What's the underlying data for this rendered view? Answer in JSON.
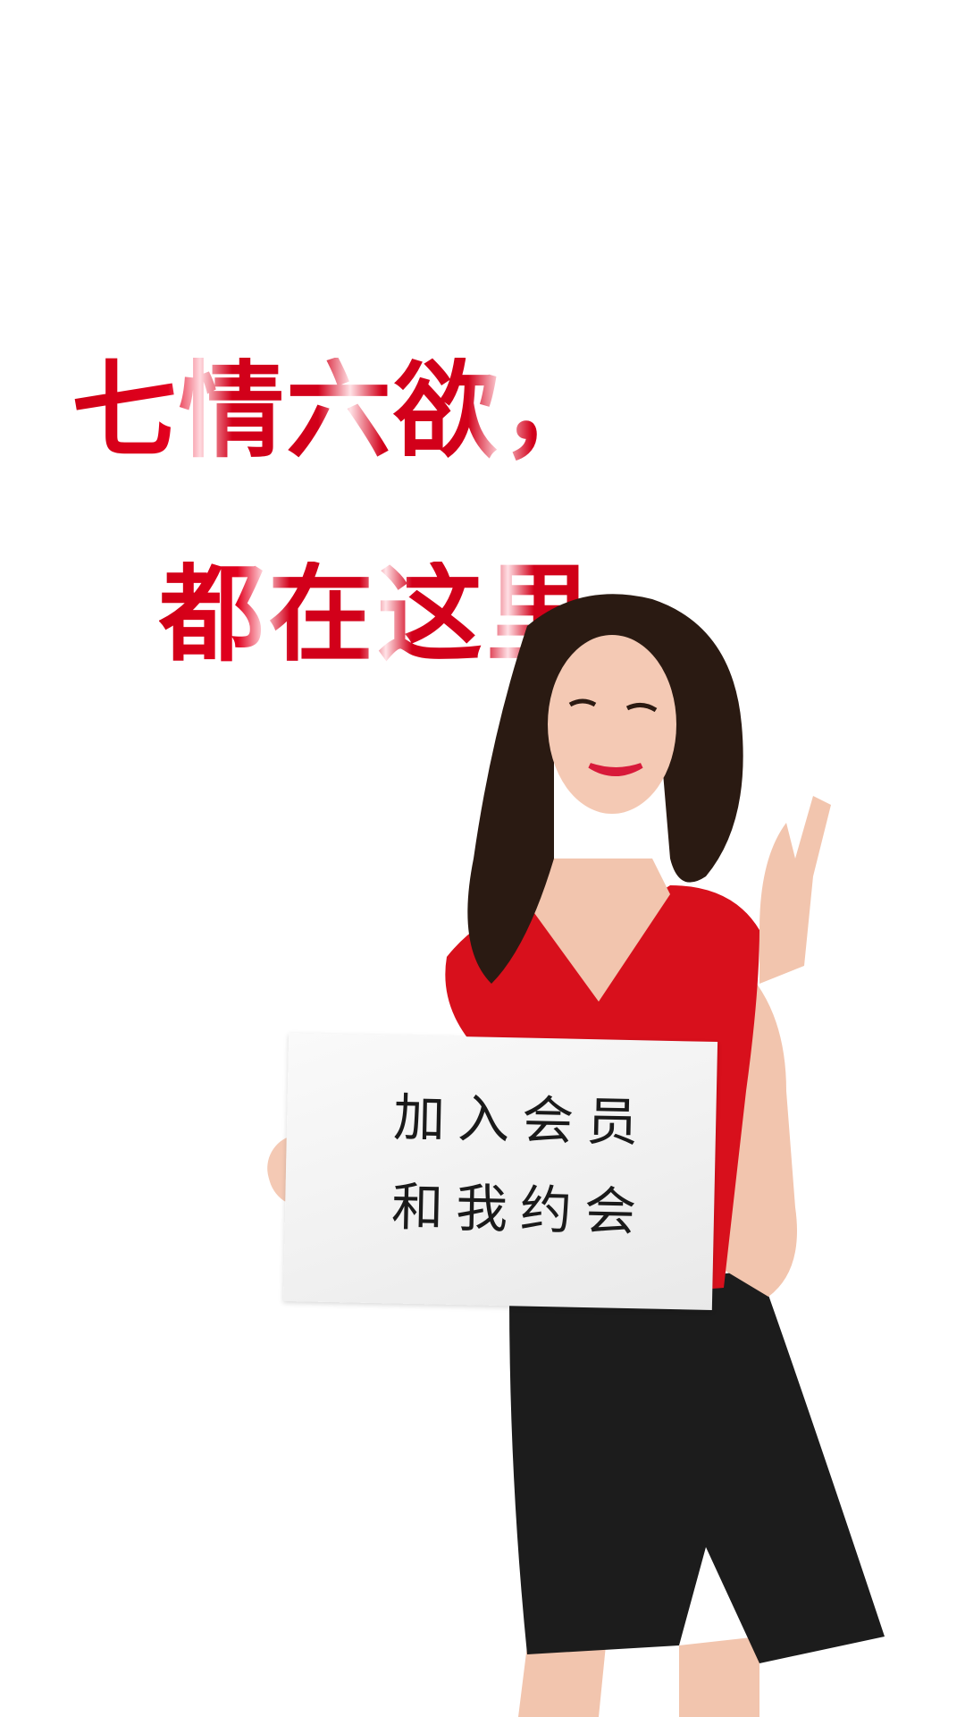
{
  "headline": {
    "line1": "七情六欲，",
    "line2": "都在这里"
  },
  "sign": {
    "line1": "加入会员",
    "line2": "和我约会"
  },
  "colors": {
    "accent": "#d8001d",
    "background": "#ffffff",
    "dress": "#d8101c",
    "shorts": "#1c1c1c"
  }
}
